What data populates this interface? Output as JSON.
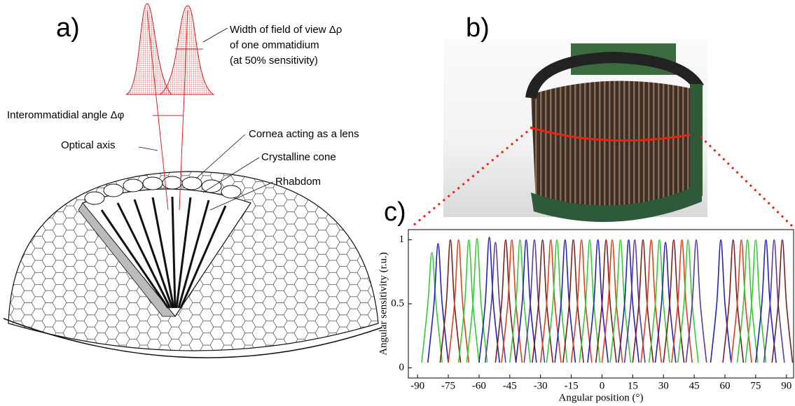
{
  "panel_a": {
    "label": "a)",
    "width_line_1": "Width of field of view Δρ",
    "width_line_2": "of one ommatidium",
    "width_line_3": "(at 50% sensitivity)",
    "interommatidial": "Interommatidial angle Δφ",
    "optical_axis": "Optical axis",
    "cornea": "Cornea acting as a lens",
    "cone": "Crystalline cone",
    "rhabdom": "Rhabdom"
  },
  "panel_b": {
    "label": "b)"
  },
  "panel_c": {
    "label": "c)"
  },
  "chart_data": {
    "type": "line",
    "x_label": "Angular position (°)",
    "y_label": "Angular sensitivity (r.u.)",
    "xlim": [
      -94.5,
      93.5
    ],
    "ylim": [
      -0.08,
      1.08
    ],
    "xticks": [
      -90,
      -75,
      -60,
      -45,
      -30,
      -15,
      0,
      15,
      30,
      45,
      60,
      75,
      90
    ],
    "yticks": [
      0,
      0.5,
      1
    ],
    "series": [
      {
        "color": "#33cc33",
        "x": [
          -88,
          -85,
          -83,
          -81,
          -78
        ],
        "values": [
          0.04,
          0.5,
          0.9,
          0.5,
          0.04
        ]
      },
      {
        "color": "#2222bb",
        "x": [
          -85,
          -82,
          -80,
          -78,
          -75
        ],
        "values": [
          0.04,
          0.5,
          0.97,
          0.5,
          0.04
        ]
      },
      {
        "color": "#7a1e1e",
        "x": [
          -79,
          -76,
          -74,
          -72,
          -69
        ],
        "values": [
          0.04,
          0.5,
          1,
          0.5,
          0.04
        ]
      },
      {
        "color": "#e0401c",
        "x": [
          -75,
          -72,
          -70,
          -68,
          -65
        ],
        "values": [
          0.04,
          0.5,
          1,
          0.5,
          0.04
        ]
      },
      {
        "color": "#33cc33",
        "x": [
          -70,
          -67,
          -65,
          -63,
          -60
        ],
        "values": [
          0.04,
          0.5,
          1,
          0.5,
          0.04
        ]
      },
      {
        "color": "#33cc33",
        "x": [
          -66,
          -63,
          -61,
          -59,
          -56
        ],
        "values": [
          0.04,
          0.5,
          1.01,
          0.5,
          0.04
        ]
      },
      {
        "color": "#2222bb",
        "x": [
          -60,
          -57,
          -55,
          -53,
          -50
        ],
        "values": [
          0.04,
          0.5,
          1.02,
          0.5,
          0.04
        ]
      },
      {
        "color": "#5a3a9a",
        "x": [
          -57,
          -54,
          -52,
          -50,
          -47
        ],
        "values": [
          0.04,
          0.5,
          0.98,
          0.5,
          0.04
        ]
      },
      {
        "color": "#7a1e1e",
        "x": [
          -52,
          -49,
          -47,
          -45,
          -42
        ],
        "values": [
          0.04,
          0.5,
          1,
          0.5,
          0.04
        ]
      },
      {
        "color": "#e0401c",
        "x": [
          -49,
          -46,
          -44,
          -42,
          -39
        ],
        "values": [
          0.04,
          0.5,
          1,
          0.5,
          0.04
        ]
      },
      {
        "color": "#33cc33",
        "x": [
          -45,
          -42,
          -40,
          -38,
          -35
        ],
        "values": [
          0.04,
          0.5,
          1,
          0.5,
          0.04
        ]
      },
      {
        "color": "#2222bb",
        "x": [
          -42,
          -39,
          -37,
          -35,
          -32
        ],
        "values": [
          0.04,
          0.5,
          1,
          0.5,
          0.04
        ]
      },
      {
        "color": "#5a3a9a",
        "x": [
          -38,
          -35,
          -33,
          -31,
          -28
        ],
        "values": [
          0.04,
          0.5,
          1,
          0.5,
          0.04
        ]
      },
      {
        "color": "#7a1e1e",
        "x": [
          -34,
          -31,
          -29,
          -27,
          -24
        ],
        "values": [
          0.04,
          0.5,
          1,
          0.5,
          0.04
        ]
      },
      {
        "color": "#e0401c",
        "x": [
          -30,
          -27,
          -25,
          -23,
          -20
        ],
        "values": [
          0.04,
          0.5,
          1,
          0.5,
          0.04
        ]
      },
      {
        "color": "#33cc33",
        "x": [
          -27,
          -24,
          -22,
          -20,
          -17
        ],
        "values": [
          0.04,
          0.5,
          1,
          0.5,
          0.04
        ]
      },
      {
        "color": "#2222bb",
        "x": [
          -23,
          -20,
          -18,
          -16,
          -13
        ],
        "values": [
          0.04,
          0.5,
          1,
          0.5,
          0.04
        ]
      },
      {
        "color": "#7a1e1e",
        "x": [
          -19,
          -16,
          -14,
          -12,
          -9
        ],
        "values": [
          0.04,
          0.5,
          1,
          0.5,
          0.04
        ]
      },
      {
        "color": "#e0401c",
        "x": [
          -15,
          -12,
          -10,
          -8,
          -5
        ],
        "values": [
          0.04,
          0.5,
          1,
          0.5,
          0.04
        ]
      },
      {
        "color": "#33cc33",
        "x": [
          -11,
          -8,
          -6,
          -4,
          -1
        ],
        "values": [
          0.04,
          0.5,
          1,
          0.5,
          0.04
        ]
      },
      {
        "color": "#2222bb",
        "x": [
          -7,
          -4,
          -2,
          0,
          3
        ],
        "values": [
          0.04,
          0.5,
          1,
          0.5,
          0.04
        ]
      },
      {
        "color": "#7a1e1e",
        "x": [
          -3,
          0,
          2,
          4,
          7
        ],
        "values": [
          0.04,
          0.5,
          1,
          0.5,
          0.04
        ]
      },
      {
        "color": "#e0401c",
        "x": [
          0,
          3,
          5,
          7,
          10
        ],
        "values": [
          0.04,
          0.5,
          1,
          0.5,
          0.04
        ]
      },
      {
        "color": "#33cc33",
        "x": [
          4,
          7,
          9,
          11,
          14
        ],
        "values": [
          0.04,
          0.5,
          1,
          0.5,
          0.04
        ]
      },
      {
        "color": "#2222bb",
        "x": [
          8,
          11,
          13,
          15,
          18
        ],
        "values": [
          0.04,
          0.5,
          1,
          0.5,
          0.04
        ]
      },
      {
        "color": "#5a3a9a",
        "x": [
          11,
          14,
          16,
          18,
          21
        ],
        "values": [
          0.04,
          0.5,
          1,
          0.5,
          0.04
        ]
      },
      {
        "color": "#7a1e1e",
        "x": [
          15,
          18,
          20,
          22,
          25
        ],
        "values": [
          0.04,
          0.5,
          1,
          0.5,
          0.04
        ]
      },
      {
        "color": "#e0401c",
        "x": [
          19,
          22,
          24,
          26,
          29
        ],
        "values": [
          0.04,
          0.5,
          1,
          0.5,
          0.04
        ]
      },
      {
        "color": "#33cc33",
        "x": [
          23,
          26,
          28,
          30,
          33
        ],
        "values": [
          0.04,
          0.5,
          1,
          0.5,
          0.04
        ]
      },
      {
        "color": "#2222bb",
        "x": [
          26,
          29,
          31,
          33,
          36
        ],
        "values": [
          0.04,
          0.5,
          0.98,
          0.5,
          0.04
        ]
      },
      {
        "color": "#7a1e1e",
        "x": [
          30,
          33,
          35,
          37,
          40
        ],
        "values": [
          0.04,
          0.5,
          1,
          0.5,
          0.04
        ]
      },
      {
        "color": "#e0401c",
        "x": [
          34,
          37,
          39,
          41,
          44
        ],
        "values": [
          0.04,
          0.5,
          1,
          0.5,
          0.04
        ]
      },
      {
        "color": "#33cc33",
        "x": [
          37,
          40,
          42,
          44,
          47
        ],
        "values": [
          0.04,
          0.5,
          1,
          0.5,
          0.04
        ]
      },
      {
        "color": "#5a3a9a",
        "x": [
          41,
          44,
          46,
          48,
          51
        ],
        "values": [
          0.04,
          0.5,
          1,
          0.5,
          0.04
        ]
      },
      {
        "color": "#2222bb",
        "x": [
          53,
          56,
          58,
          60,
          63
        ],
        "values": [
          0.04,
          0.5,
          1,
          0.5,
          0.04
        ]
      },
      {
        "color": "#7a1e1e",
        "x": [
          59,
          62,
          64,
          66,
          69
        ],
        "values": [
          0.04,
          0.5,
          1,
          0.5,
          0.04
        ]
      },
      {
        "color": "#e0401c",
        "x": [
          63,
          66,
          68,
          70,
          73
        ],
        "values": [
          0.04,
          0.5,
          1,
          0.5,
          0.04
        ]
      },
      {
        "color": "#33cc33",
        "x": [
          66,
          69,
          71,
          73,
          76
        ],
        "values": [
          0.04,
          0.5,
          1,
          0.5,
          0.04
        ]
      },
      {
        "color": "#33cc33",
        "x": [
          70,
          73,
          75,
          77,
          80
        ],
        "values": [
          0.04,
          0.5,
          1,
          0.5,
          0.04
        ]
      },
      {
        "color": "#2222bb",
        "x": [
          75,
          78,
          80,
          82,
          85
        ],
        "values": [
          0.04,
          0.5,
          1,
          0.5,
          0.04
        ]
      },
      {
        "color": "#5a3a9a",
        "x": [
          79,
          82,
          84,
          86,
          89
        ],
        "values": [
          0.04,
          0.5,
          1,
          0.5,
          0.04
        ]
      },
      {
        "color": "#7a1e1e",
        "x": [
          83,
          86,
          88,
          90,
          93
        ],
        "values": [
          0.04,
          0.5,
          1,
          0.5,
          0.04
        ]
      }
    ]
  }
}
